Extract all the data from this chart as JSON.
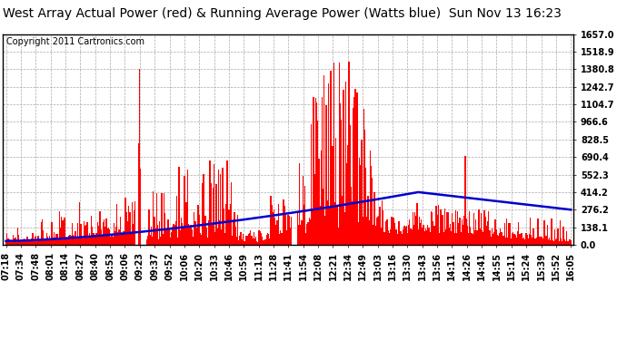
{
  "title": "West Array Actual Power (red) & Running Average Power (Watts blue)  Sun Nov 13 16:23",
  "copyright": "Copyright 2011 Cartronics.com",
  "y_ticks": [
    0.0,
    138.1,
    276.2,
    414.2,
    552.3,
    690.4,
    828.5,
    966.6,
    1104.7,
    1242.7,
    1380.8,
    1518.9,
    1657.0
  ],
  "x_labels": [
    "07:18",
    "07:34",
    "07:48",
    "08:01",
    "08:14",
    "08:27",
    "08:40",
    "08:53",
    "09:06",
    "09:23",
    "09:37",
    "09:52",
    "10:06",
    "10:20",
    "10:33",
    "10:46",
    "10:59",
    "11:13",
    "11:28",
    "11:41",
    "11:54",
    "12:08",
    "12:21",
    "12:34",
    "12:49",
    "13:03",
    "13:16",
    "13:30",
    "13:43",
    "13:56",
    "14:11",
    "14:26",
    "14:41",
    "14:55",
    "15:11",
    "15:24",
    "15:39",
    "15:52",
    "16:05"
  ],
  "bar_color": "#ff0000",
  "line_color": "#0000cc",
  "background_color": "#ffffff",
  "plot_bg_color": "#ffffff",
  "grid_color": "#aaaaaa",
  "title_fontsize": 10,
  "copyright_fontsize": 7,
  "tick_fontsize": 7,
  "ymax": 1657.0,
  "ymin": 0.0
}
